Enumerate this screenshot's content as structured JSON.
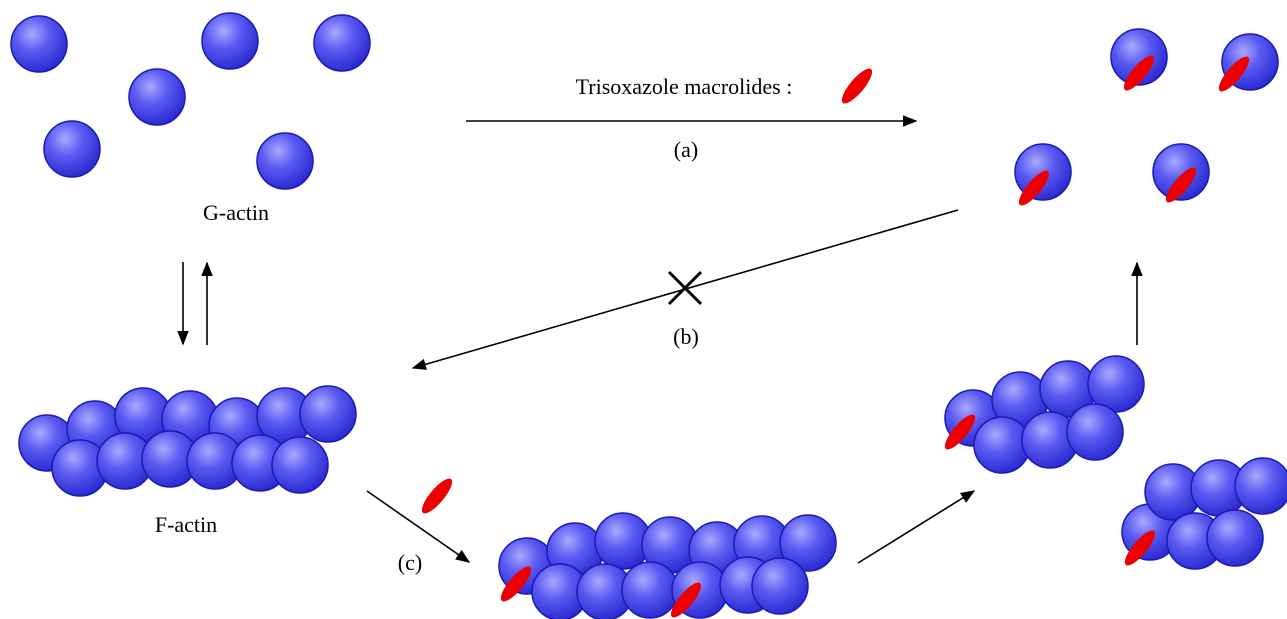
{
  "title": "Trisoxazole macrolides :",
  "labels": {
    "a": "(a)",
    "b": "(b)",
    "c": "(c)"
  },
  "g_actin": "G-actin",
  "f_actin": "F-actin"
}
